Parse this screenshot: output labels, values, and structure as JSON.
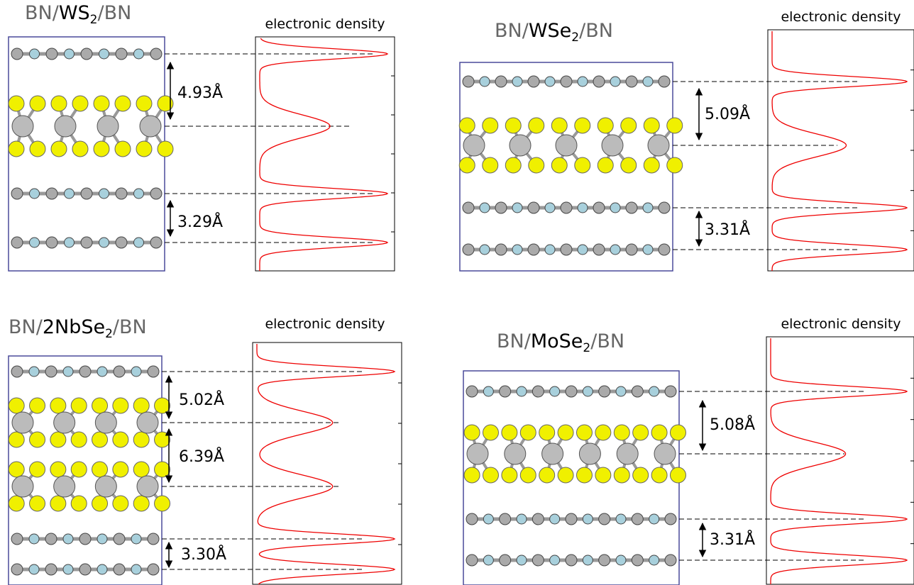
{
  "panels": [
    {
      "title": {
        "prefix": "BN/",
        "material": "WS",
        "subscript": "2",
        "suffix": "/BN"
      },
      "density_label": "electronic density",
      "distances": [
        "4.93Å",
        "3.29Å"
      ]
    },
    {
      "title": {
        "prefix": "BN/",
        "material": "WSe",
        "subscript": "2",
        "suffix": "/BN"
      },
      "density_label": "electronic density",
      "distances": [
        "5.09Å",
        "3.31Å"
      ]
    },
    {
      "title": {
        "prefix": "BN/",
        "material": "2NbSe",
        "subscript": "2",
        "suffix": "/BN"
      },
      "density_label": "electronic density",
      "distances": [
        "5.02Å",
        "6.39Å",
        "3.30Å"
      ]
    },
    {
      "title": {
        "prefix": "BN/",
        "material": "MoSe",
        "subscript": "2",
        "suffix": "/BN"
      },
      "density_label": "electronic density",
      "distances": [
        "5.08Å",
        "3.31Å"
      ]
    }
  ]
}
